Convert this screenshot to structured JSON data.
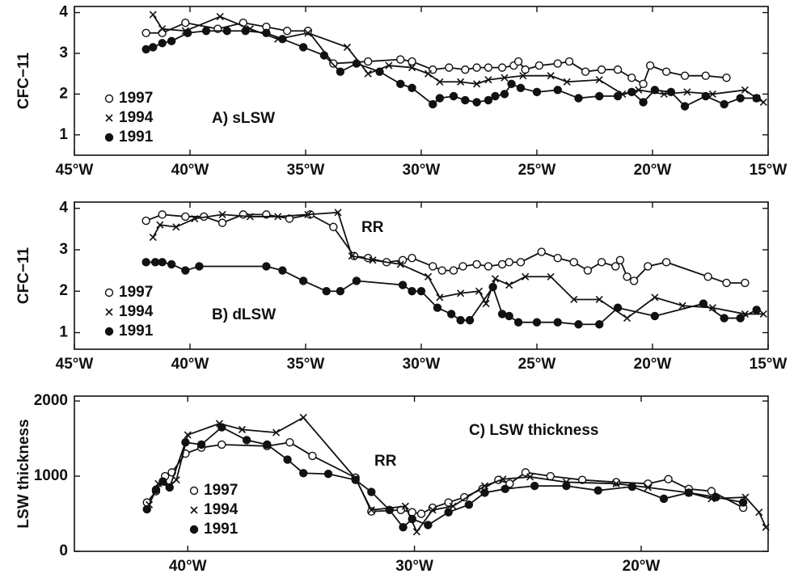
{
  "chart_data": [
    {
      "type": "line",
      "ylabel": "CFC−11",
      "annotations": [
        "A) sLSW"
      ],
      "xlim": [
        -45,
        -15
      ],
      "ylim": [
        0.5,
        4.15
      ],
      "xticks": [
        {
          "value": -45,
          "label": "45°W"
        },
        {
          "value": -40,
          "label": "40°W"
        },
        {
          "value": -35,
          "label": "35°W"
        },
        {
          "value": -30,
          "label": "30°W"
        },
        {
          "value": -25,
          "label": "25°W"
        },
        {
          "value": -20,
          "label": "20°W"
        },
        {
          "value": -15,
          "label": "15°W"
        }
      ],
      "yticks": [
        1,
        2,
        3,
        4
      ],
      "legend": "lower left",
      "series": [
        {
          "name": "1997",
          "marker": "open-circle",
          "color": "#111111",
          "x": [
            -41.9,
            -41.2,
            -40.2,
            -38.8,
            -37.7,
            -36.7,
            -35.8,
            -34.9,
            -33.8,
            -32.3,
            -30.9,
            -30.4,
            -29.5,
            -28.8,
            -28.1,
            -27.6,
            -27.1,
            -26.5,
            -26.0,
            -25.8,
            -25.5,
            -24.9,
            -24.1,
            -23.6,
            -22.9,
            -22.2,
            -21.5,
            -20.9,
            -20.4,
            -20.1,
            -19.4,
            -18.6,
            -17.7,
            -16.8
          ],
          "values": [
            3.5,
            3.5,
            3.75,
            3.6,
            3.75,
            3.65,
            3.55,
            3.55,
            2.75,
            2.8,
            2.85,
            2.8,
            2.6,
            2.65,
            2.6,
            2.65,
            2.65,
            2.65,
            2.7,
            2.8,
            2.6,
            2.7,
            2.75,
            2.8,
            2.55,
            2.6,
            2.6,
            2.4,
            2.25,
            2.7,
            2.55,
            2.45,
            2.45,
            2.4
          ]
        },
        {
          "name": "1994",
          "marker": "cross",
          "color": "#111111",
          "x": [
            -41.6,
            -41.2,
            -40.2,
            -38.7,
            -37.4,
            -36.2,
            -34.9,
            -33.2,
            -32.3,
            -31.4,
            -30.4,
            -29.7,
            -29.2,
            -28.3,
            -27.6,
            -27.1,
            -26.4,
            -25.6,
            -24.4,
            -23.7,
            -22.3,
            -21.3,
            -20.6,
            -19.5,
            -18.5,
            -17.4,
            -16.0,
            -15.5,
            -15.2
          ],
          "values": [
            3.95,
            3.6,
            3.55,
            3.9,
            3.6,
            3.35,
            3.5,
            3.15,
            2.5,
            2.7,
            2.65,
            2.5,
            2.3,
            2.3,
            2.25,
            2.35,
            2.4,
            2.45,
            2.45,
            2.3,
            2.35,
            2.0,
            2.1,
            2.0,
            2.05,
            2.0,
            2.1,
            1.9,
            1.8
          ]
        },
        {
          "name": "1991",
          "marker": "filled-circle",
          "color": "#111111",
          "x": [
            -41.9,
            -41.6,
            -41.2,
            -40.8,
            -40.1,
            -39.3,
            -38.4,
            -37.6,
            -36.7,
            -36.0,
            -35.1,
            -34.2,
            -33.5,
            -32.8,
            -31.8,
            -30.9,
            -30.4,
            -29.5,
            -29.2,
            -28.6,
            -28.1,
            -27.6,
            -27.1,
            -26.8,
            -26.4,
            -26.1,
            -25.7,
            -25.0,
            -24.1,
            -23.2,
            -22.3,
            -21.5,
            -20.9,
            -20.4,
            -19.9,
            -19.2,
            -18.6,
            -17.7,
            -16.9,
            -16.2,
            -15.5
          ],
          "values": [
            3.1,
            3.15,
            3.25,
            3.3,
            3.5,
            3.55,
            3.55,
            3.55,
            3.5,
            3.35,
            3.15,
            2.95,
            2.55,
            2.75,
            2.55,
            2.25,
            2.15,
            1.75,
            1.9,
            1.95,
            1.85,
            1.8,
            1.85,
            1.95,
            2.0,
            2.25,
            2.15,
            2.05,
            2.1,
            1.9,
            1.95,
            1.95,
            2.05,
            1.8,
            2.1,
            2.05,
            1.7,
            1.95,
            1.75,
            1.9,
            1.9
          ]
        }
      ]
    },
    {
      "type": "line",
      "ylabel": "CFC−11",
      "annotations": [
        "B) dLSW",
        "RR"
      ],
      "xlim": [
        -45,
        -15
      ],
      "ylim": [
        0.6,
        4.15
      ],
      "xticks": [
        {
          "value": -45,
          "label": "45°W"
        },
        {
          "value": -40,
          "label": "40°W"
        },
        {
          "value": -35,
          "label": "35°W"
        },
        {
          "value": -30,
          "label": "30°W"
        },
        {
          "value": -25,
          "label": "25°W"
        },
        {
          "value": -20,
          "label": "20°W"
        },
        {
          "value": -15,
          "label": "15°W"
        }
      ],
      "yticks": [
        1,
        2,
        3,
        4
      ],
      "legend": "lower left",
      "series": [
        {
          "name": "1997",
          "marker": "open-circle",
          "color": "#111111",
          "x": [
            -41.9,
            -41.2,
            -40.2,
            -39.4,
            -38.6,
            -37.7,
            -36.7,
            -35.7,
            -34.8,
            -33.8,
            -32.9,
            -32.3,
            -31.5,
            -30.8,
            -30.4,
            -29.5,
            -29.1,
            -28.6,
            -28.2,
            -27.6,
            -27.1,
            -26.5,
            -26.2,
            -25.7,
            -24.8,
            -24.1,
            -23.4,
            -22.8,
            -22.2,
            -21.6,
            -21.4,
            -21.1,
            -20.8,
            -20.2,
            -19.4,
            -17.6,
            -16.8,
            -16.0
          ],
          "values": [
            3.7,
            3.85,
            3.8,
            3.8,
            3.65,
            3.85,
            3.85,
            3.75,
            3.85,
            3.55,
            2.85,
            2.8,
            2.7,
            2.75,
            2.8,
            2.6,
            2.5,
            2.5,
            2.6,
            2.65,
            2.6,
            2.65,
            2.7,
            2.7,
            2.95,
            2.8,
            2.7,
            2.5,
            2.7,
            2.6,
            2.75,
            2.35,
            2.25,
            2.6,
            2.7,
            2.35,
            2.2,
            2.2
          ]
        },
        {
          "name": "1994",
          "marker": "cross",
          "color": "#111111",
          "x": [
            -41.6,
            -41.3,
            -40.6,
            -39.8,
            -38.6,
            -37.4,
            -36.2,
            -34.9,
            -33.6,
            -33.0,
            -32.1,
            -30.9,
            -29.7,
            -29.2,
            -28.3,
            -27.5,
            -27.2,
            -26.8,
            -26.2,
            -25.5,
            -24.4,
            -23.4,
            -22.3,
            -21.1,
            -19.9,
            -18.7,
            -17.4,
            -16.0,
            -15.2
          ],
          "values": [
            3.3,
            3.6,
            3.55,
            3.75,
            3.85,
            3.8,
            3.8,
            3.85,
            3.9,
            2.85,
            2.75,
            2.65,
            2.35,
            1.85,
            1.95,
            2.0,
            1.7,
            2.3,
            2.15,
            2.35,
            2.35,
            1.8,
            1.8,
            1.35,
            1.85,
            1.65,
            1.6,
            1.45,
            1.45
          ]
        },
        {
          "name": "1991",
          "marker": "filled-circle",
          "color": "#111111",
          "x": [
            -41.9,
            -41.5,
            -41.2,
            -40.8,
            -40.2,
            -39.6,
            -36.7,
            -36.0,
            -35.1,
            -34.1,
            -33.5,
            -32.8,
            -30.8,
            -30.4,
            -30.0,
            -29.3,
            -28.7,
            -28.3,
            -27.9,
            -26.9,
            -26.5,
            -26.2,
            -25.8,
            -25.0,
            -24.1,
            -23.2,
            -22.3,
            -21.5,
            -19.9,
            -17.8,
            -16.9,
            -16.2,
            -15.5
          ],
          "values": [
            2.7,
            2.7,
            2.7,
            2.65,
            2.5,
            2.6,
            2.6,
            2.5,
            2.25,
            2.0,
            2.0,
            2.25,
            2.15,
            2.0,
            2.0,
            1.6,
            1.45,
            1.3,
            1.3,
            2.1,
            1.45,
            1.4,
            1.25,
            1.25,
            1.25,
            1.2,
            1.2,
            1.6,
            1.4,
            1.7,
            1.35,
            1.35,
            1.55
          ]
        }
      ]
    },
    {
      "type": "line",
      "ylabel": "LSW thickness",
      "annotations": [
        "C) LSW thickness",
        "RR"
      ],
      "xlim": [
        -45,
        -14.4
      ],
      "ylim": [
        0,
        2065
      ],
      "xticks": [
        {
          "value": -40,
          "label": "40°W"
        },
        {
          "value": -30,
          "label": "30°W"
        },
        {
          "value": -20,
          "label": "20°W"
        }
      ],
      "yticks": [
        0,
        1000,
        2000
      ],
      "legend": "lower left",
      "series": [
        {
          "name": "1997",
          "marker": "open-circle",
          "color": "#111111",
          "x": [
            -41.8,
            -41.4,
            -41.0,
            -40.7,
            -40.1,
            -39.4,
            -38.5,
            -36.5,
            -35.5,
            -34.5,
            -32.6,
            -31.9,
            -30.6,
            -30.1,
            -29.7,
            -29.2,
            -28.5,
            -27.8,
            -27.0,
            -26.3,
            -25.8,
            -25.1,
            -24.0,
            -22.6,
            -21.1,
            -19.7,
            -18.8,
            -17.9,
            -16.9,
            -15.5
          ],
          "values": [
            650,
            800,
            1000,
            1050,
            1300,
            1380,
            1420,
            1400,
            1450,
            1270,
            980,
            530,
            550,
            520,
            500,
            580,
            650,
            720,
            830,
            950,
            900,
            1050,
            1000,
            950,
            920,
            900,
            960,
            830,
            800,
            580
          ]
        },
        {
          "name": "1994",
          "marker": "cross",
          "color": "#111111",
          "x": [
            -41.7,
            -41.3,
            -40.8,
            -40.5,
            -40.0,
            -38.6,
            -37.6,
            -36.1,
            -34.9,
            -32.6,
            -31.9,
            -30.4,
            -29.9,
            -29.2,
            -28.3,
            -26.9,
            -26.1,
            -24.9,
            -23.3,
            -21.1,
            -19.7,
            -17.9,
            -16.9,
            -15.4,
            -14.8,
            -14.5
          ],
          "values": [
            620,
            900,
            870,
            950,
            1550,
            1700,
            1620,
            1580,
            1780,
            970,
            550,
            600,
            260,
            550,
            600,
            870,
            960,
            990,
            920,
            900,
            850,
            780,
            700,
            720,
            520,
            320
          ]
        },
        {
          "name": "1991",
          "marker": "filled-circle",
          "color": "#111111",
          "x": [
            -41.8,
            -41.4,
            -41.1,
            -40.8,
            -40.1,
            -39.4,
            -38.5,
            -37.4,
            -36.5,
            -35.6,
            -34.9,
            -33.8,
            -32.6,
            -31.9,
            -31.1,
            -30.5,
            -30.1,
            -29.4,
            -28.5,
            -27.6,
            -26.9,
            -26.0,
            -24.7,
            -23.3,
            -21.9,
            -20.4,
            -19.0,
            -17.9,
            -16.7,
            -15.5
          ],
          "values": [
            560,
            820,
            930,
            850,
            1450,
            1420,
            1650,
            1480,
            1420,
            1220,
            1040,
            1030,
            950,
            790,
            550,
            320,
            430,
            350,
            520,
            620,
            780,
            830,
            870,
            870,
            810,
            860,
            700,
            780,
            720,
            650
          ]
        }
      ]
    }
  ]
}
